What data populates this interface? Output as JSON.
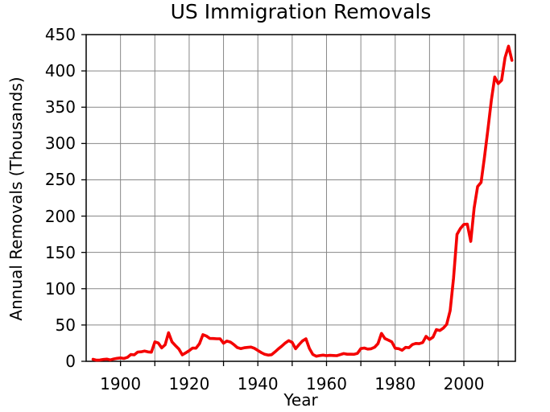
{
  "title": "US Immigration Removals",
  "colors": {
    "line": "#f40000",
    "grid": "#878787",
    "axis": "#000000",
    "background": "#ffffff",
    "text": "#000000"
  },
  "chart_data": {
    "type": "line",
    "title": "US Immigration Removals",
    "xlabel": "Year",
    "ylabel": "Annual Removals (Thousands)",
    "xlim": [
      1890,
      2015
    ],
    "ylim": [
      0,
      450
    ],
    "grid": true,
    "legend": false,
    "x_tick_labels": [
      "1900",
      "1920",
      "1940",
      "1960",
      "1980",
      "2000"
    ],
    "x_tick_years": [
      1900,
      1920,
      1940,
      1960,
      1980,
      2000
    ],
    "x_gridline_years": [
      1900,
      1910,
      1920,
      1930,
      1940,
      1950,
      1960,
      1970,
      1980,
      1990,
      2000,
      2010
    ],
    "y_tick_labels": [
      "0",
      "50",
      "100",
      "150",
      "200",
      "250",
      "300",
      "350",
      "400",
      "450"
    ],
    "y_tick_values": [
      0,
      50,
      100,
      150,
      200,
      250,
      300,
      350,
      400,
      450
    ],
    "series": [
      {
        "name": "Annual removals (thousands)",
        "color": "#f40000",
        "points": [
          [
            1892,
            2.8
          ],
          [
            1893,
            1.6
          ],
          [
            1894,
            1.8
          ],
          [
            1895,
            2.6
          ],
          [
            1896,
            3.0
          ],
          [
            1897,
            1.9
          ],
          [
            1898,
            3.2
          ],
          [
            1899,
            4.1
          ],
          [
            1900,
            4.6
          ],
          [
            1901,
            3.9
          ],
          [
            1902,
            5.4
          ],
          [
            1903,
            9.3
          ],
          [
            1904,
            8.9
          ],
          [
            1905,
            12.7
          ],
          [
            1906,
            13.1
          ],
          [
            1907,
            14.1
          ],
          [
            1908,
            13.0
          ],
          [
            1909,
            12.5
          ],
          [
            1910,
            26.7
          ],
          [
            1911,
            25.3
          ],
          [
            1912,
            18.5
          ],
          [
            1913,
            22.8
          ],
          [
            1914,
            39.4
          ],
          [
            1915,
            26.7
          ],
          [
            1916,
            21.6
          ],
          [
            1917,
            17.0
          ],
          [
            1918,
            8.9
          ],
          [
            1919,
            11.7
          ],
          [
            1920,
            14.6
          ],
          [
            1921,
            18.3
          ],
          [
            1922,
            18.1
          ],
          [
            1923,
            24.3
          ],
          [
            1924,
            36.7
          ],
          [
            1925,
            34.9
          ],
          [
            1926,
            31.5
          ],
          [
            1927,
            31.4
          ],
          [
            1928,
            31.0
          ],
          [
            1929,
            31.0
          ],
          [
            1930,
            24.9
          ],
          [
            1931,
            27.9
          ],
          [
            1932,
            26.5
          ],
          [
            1933,
            23.0
          ],
          [
            1934,
            18.9
          ],
          [
            1935,
            17.5
          ],
          [
            1936,
            18.6
          ],
          [
            1937,
            19.2
          ],
          [
            1938,
            19.6
          ],
          [
            1939,
            18.0
          ],
          [
            1940,
            15.0
          ],
          [
            1941,
            12.0
          ],
          [
            1942,
            9.6
          ],
          [
            1943,
            8.5
          ],
          [
            1944,
            9.1
          ],
          [
            1945,
            13.0
          ],
          [
            1946,
            17.3
          ],
          [
            1947,
            21.0
          ],
          [
            1948,
            25.3
          ],
          [
            1949,
            28.5
          ],
          [
            1950,
            26.0
          ],
          [
            1951,
            17.3
          ],
          [
            1952,
            23.1
          ],
          [
            1953,
            28.0
          ],
          [
            1954,
            31.0
          ],
          [
            1955,
            17.7
          ],
          [
            1956,
            9.5
          ],
          [
            1957,
            7.0
          ],
          [
            1958,
            7.9
          ],
          [
            1959,
            8.5
          ],
          [
            1960,
            7.8
          ],
          [
            1961,
            8.2
          ],
          [
            1962,
            8.0
          ],
          [
            1963,
            7.8
          ],
          [
            1964,
            9.2
          ],
          [
            1965,
            10.6
          ],
          [
            1966,
            9.7
          ],
          [
            1967,
            9.7
          ],
          [
            1968,
            9.6
          ],
          [
            1969,
            11.0
          ],
          [
            1970,
            17.5
          ],
          [
            1971,
            18.3
          ],
          [
            1972,
            16.9
          ],
          [
            1973,
            17.3
          ],
          [
            1974,
            19.4
          ],
          [
            1975,
            24.4
          ],
          [
            1976,
            38.5
          ],
          [
            1977,
            31.4
          ],
          [
            1978,
            29.3
          ],
          [
            1979,
            26.8
          ],
          [
            1980,
            18.0
          ],
          [
            1981,
            17.4
          ],
          [
            1982,
            15.2
          ],
          [
            1983,
            19.2
          ],
          [
            1984,
            18.7
          ],
          [
            1985,
            23.1
          ],
          [
            1986,
            24.6
          ],
          [
            1987,
            24.3
          ],
          [
            1988,
            25.8
          ],
          [
            1989,
            34.4
          ],
          [
            1990,
            30.0
          ],
          [
            1991,
            33.2
          ],
          [
            1992,
            43.7
          ],
          [
            1993,
            42.5
          ],
          [
            1994,
            45.7
          ],
          [
            1995,
            50.9
          ],
          [
            1996,
            69.7
          ],
          [
            1997,
            114.4
          ],
          [
            1998,
            174.8
          ],
          [
            1999,
            183.1
          ],
          [
            2000,
            188.5
          ],
          [
            2001,
            189.0
          ],
          [
            2002,
            165.2
          ],
          [
            2003,
            211.1
          ],
          [
            2004,
            240.7
          ],
          [
            2005,
            246.4
          ],
          [
            2006,
            281.0
          ],
          [
            2007,
            319.4
          ],
          [
            2008,
            359.8
          ],
          [
            2009,
            391.6
          ],
          [
            2010,
            382.5
          ],
          [
            2011,
            387.2
          ],
          [
            2012,
            418.4
          ],
          [
            2013,
            434.0
          ],
          [
            2014,
            414.5
          ]
        ]
      }
    ]
  }
}
